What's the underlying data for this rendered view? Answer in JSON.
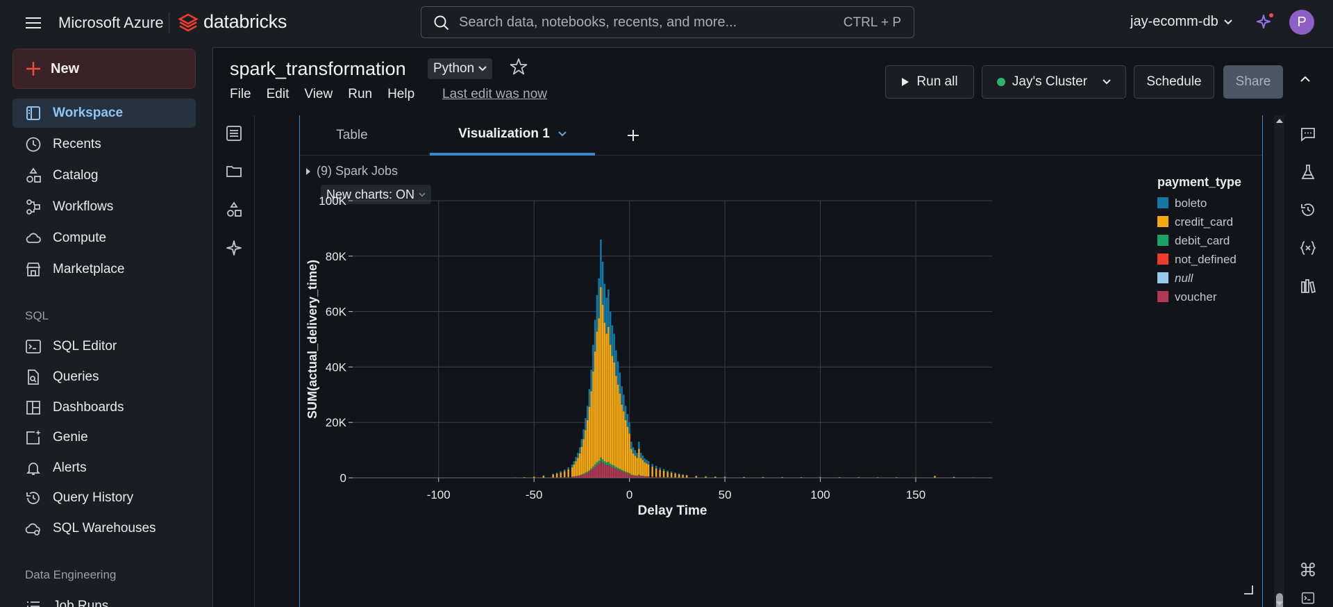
{
  "topbar": {
    "brand_ms": "Microsoft Azure",
    "brand_db": "databricks",
    "search_placeholder": "Search data, notebooks, recents, and more...",
    "search_shortcut": "CTRL + P",
    "workspace": "jay-ecomm-db",
    "avatar_letter": "P"
  },
  "sidebar": {
    "new_label": "New",
    "items": [
      {
        "label": "Workspace",
        "icon": "workspace-icon"
      },
      {
        "label": "Recents",
        "icon": "clock-icon"
      },
      {
        "label": "Catalog",
        "icon": "catalog-icon"
      },
      {
        "label": "Workflows",
        "icon": "workflows-icon"
      },
      {
        "label": "Compute",
        "icon": "cloud-icon"
      },
      {
        "label": "Marketplace",
        "icon": "store-icon"
      }
    ],
    "sql_section": "SQL",
    "sql_items": [
      {
        "label": "SQL Editor",
        "icon": "terminal-icon"
      },
      {
        "label": "Queries",
        "icon": "query-file-icon"
      },
      {
        "label": "Dashboards",
        "icon": "dashboard-icon"
      },
      {
        "label": "Genie",
        "icon": "genie-icon"
      },
      {
        "label": "Alerts",
        "icon": "bell-icon"
      },
      {
        "label": "Query History",
        "icon": "history-icon"
      },
      {
        "label": "SQL Warehouses",
        "icon": "warehouse-icon"
      }
    ],
    "de_section": "Data Engineering",
    "de_items": [
      {
        "label": "Job Runs",
        "icon": "job-runs-icon"
      }
    ]
  },
  "notebook": {
    "title": "spark_transformation",
    "language": "Python",
    "menu": [
      "File",
      "Edit",
      "View",
      "Run",
      "Help"
    ],
    "last_edit": "Last edit was now",
    "run_all": "Run all",
    "cluster": "Jay's Cluster",
    "schedule": "Schedule",
    "share": "Share"
  },
  "cell": {
    "tabs": [
      "Table",
      "Visualization 1"
    ],
    "spark_jobs": "(9) Spark Jobs",
    "new_charts": "New charts: ON"
  },
  "chart_data": {
    "type": "bar",
    "stacked": true,
    "xlabel": "Delay Time",
    "ylabel": "SUM(actual_delivery_time)",
    "xlim": [
      -145,
      190
    ],
    "ylim": [
      0,
      100000
    ],
    "x_ticks": [
      "-100",
      "-50",
      "0",
      "50",
      "100",
      "150"
    ],
    "y_ticks": [
      "0",
      "20K",
      "40K",
      "60K",
      "80K",
      "100K"
    ],
    "legend_title": "payment_type",
    "legend_position": "top-right",
    "grid": true,
    "series": [
      {
        "name": "boleto",
        "color": "#1478a5"
      },
      {
        "name": "credit_card",
        "color": "#f6a80f"
      },
      {
        "name": "debit_card",
        "color": "#19a265"
      },
      {
        "name": "not_defined",
        "color": "#f13c2a"
      },
      {
        "name": "null",
        "color": "#99c9ea"
      },
      {
        "name": "voucher",
        "color": "#b03a55"
      }
    ],
    "x": [
      -60,
      -55,
      -50,
      -45,
      -40,
      -38,
      -36,
      -34,
      -32,
      -30,
      -29,
      -28,
      -27,
      -26,
      -25,
      -24,
      -23,
      -22,
      -21,
      -20,
      -19,
      -18,
      -17,
      -16,
      -15,
      -14,
      -13,
      -12,
      -11,
      -10,
      -9,
      -8,
      -7,
      -6,
      -5,
      -4,
      -3,
      -2,
      -1,
      0,
      1,
      2,
      3,
      4,
      5,
      6,
      7,
      8,
      9,
      10,
      12,
      14,
      16,
      18,
      20,
      22,
      24,
      26,
      28,
      30,
      35,
      40,
      45,
      50,
      60,
      70,
      80,
      90,
      100,
      110,
      120,
      130,
      140,
      150,
      160,
      170,
      180
    ],
    "totals": [
      150,
      250,
      500,
      900,
      1500,
      1900,
      2400,
      3000,
      3800,
      4800,
      6000,
      7500,
      9000,
      11000,
      14000,
      17500,
      21500,
      26000,
      32000,
      39000,
      48000,
      57000,
      66000,
      72000,
      86000,
      78000,
      70000,
      65000,
      68000,
      60000,
      55000,
      52000,
      46000,
      42000,
      38000,
      33000,
      30000,
      26000,
      23000,
      20000,
      13000,
      11000,
      10000,
      9000,
      13000,
      9000,
      8000,
      7000,
      6500,
      6000,
      5000,
      4300,
      3700,
      3200,
      2700,
      2300,
      1900,
      1600,
      1300,
      1100,
      800,
      600,
      500,
      450,
      350,
      300,
      280,
      250,
      250,
      230,
      220,
      200,
      200,
      180,
      800,
      400,
      150
    ],
    "boleto_share": 0.2,
    "voucher_share": 0.07,
    "debit_share": 0.015
  }
}
